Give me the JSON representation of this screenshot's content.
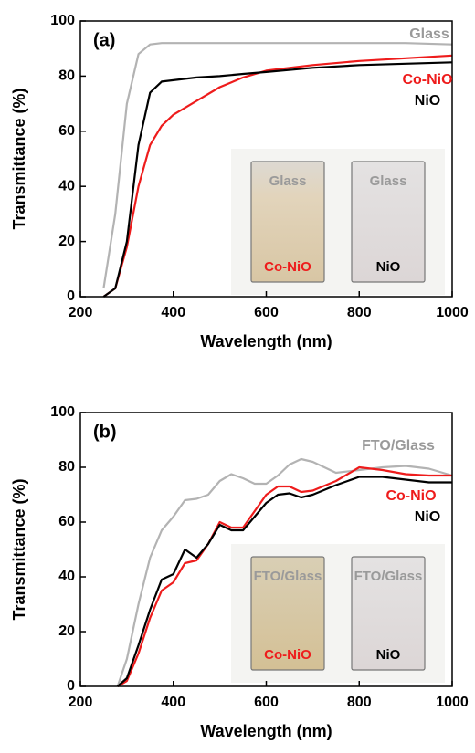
{
  "chart_data": [
    {
      "type": "line",
      "panel_label": "(a)",
      "x_label": "Wavelength (nm)",
      "y_label": "Transmittance (%)",
      "xlim": [
        200,
        1000
      ],
      "ylim": [
        0,
        100
      ],
      "xticks": [
        200,
        400,
        600,
        800,
        1000
      ],
      "yticks": [
        0,
        20,
        40,
        60,
        80,
        100
      ],
      "x": [
        250,
        275,
        300,
        325,
        350,
        375,
        400,
        450,
        500,
        550,
        600,
        700,
        800,
        900,
        1000
      ],
      "series": [
        {
          "name": "Glass",
          "color": "#b3b3b3",
          "values": [
            3,
            30,
            70,
            88,
            91.5,
            92,
            92,
            92,
            92,
            92,
            92,
            92,
            92,
            92,
            91.5
          ]
        },
        {
          "name": "Co-NiO",
          "color": "#ee1c1c",
          "values": [
            0,
            3,
            18,
            40,
            55,
            62,
            66,
            71,
            76,
            79.5,
            82,
            84,
            85.5,
            86.5,
            87.5
          ]
        },
        {
          "name": "NiO",
          "color": "#000000",
          "values": [
            0,
            3,
            20,
            55,
            74,
            78,
            78.5,
            79.5,
            80,
            80.8,
            81.5,
            83,
            84,
            84.5,
            85
          ]
        }
      ],
      "inset_labels": {
        "left_top": "Glass",
        "right_top": "Glass",
        "left_bottom": "Co-NiO",
        "right_bottom": "NiO"
      }
    },
    {
      "type": "line",
      "panel_label": "(b)",
      "x_label": "Wavelength (nm)",
      "y_label": "Transmittance (%)",
      "xlim": [
        200,
        1000
      ],
      "ylim": [
        0,
        100
      ],
      "xticks": [
        200,
        400,
        600,
        800,
        1000
      ],
      "yticks": [
        0,
        20,
        40,
        60,
        80,
        100
      ],
      "x": [
        280,
        300,
        325,
        350,
        375,
        400,
        425,
        450,
        475,
        500,
        525,
        550,
        575,
        600,
        625,
        650,
        675,
        700,
        750,
        800,
        850,
        900,
        950,
        1000
      ],
      "series": [
        {
          "name": "FTO/Glass",
          "color": "#b3b3b3",
          "values": [
            0,
            10,
            30,
            47,
            57,
            62,
            68,
            68.5,
            70,
            75,
            77.5,
            76,
            74,
            74,
            77,
            81,
            83,
            82,
            78,
            79,
            80,
            80.5,
            79.5,
            77
          ]
        },
        {
          "name": "Co-NiO",
          "color": "#ee1c1c",
          "values": [
            0,
            2,
            12,
            25,
            35,
            38,
            45,
            46,
            52,
            60,
            58,
            58,
            64,
            70,
            73,
            73,
            71,
            71.5,
            75,
            80,
            79,
            77.5,
            77,
            77
          ]
        },
        {
          "name": "NiO",
          "color": "#000000",
          "values": [
            0,
            3,
            15,
            28,
            39,
            41,
            50,
            47,
            52,
            59,
            57,
            57,
            62,
            67,
            70,
            70.5,
            69,
            70,
            73.5,
            76.5,
            76.5,
            75.5,
            74.5,
            74.5
          ]
        }
      ],
      "inset_labels": {
        "left_top": "FTO/Glass",
        "right_top": "FTO/Glass",
        "left_bottom": "Co-NiO",
        "right_bottom": "NiO"
      }
    }
  ]
}
